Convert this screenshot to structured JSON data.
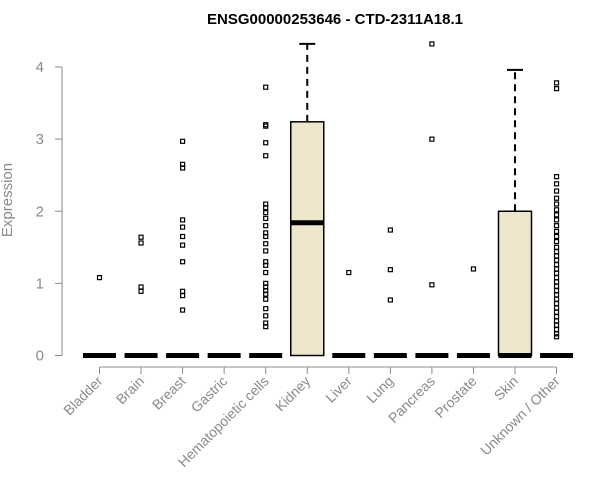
{
  "chart_data": {
    "type": "box",
    "title": "ENSG00000253646 - CTD-2311A18.1",
    "xlabel": "",
    "ylabel": "Expression",
    "ylim": [
      0,
      4.3
    ],
    "yticks": [
      0,
      1,
      2,
      3,
      4
    ],
    "box_fill": "#ede6cc",
    "grid": false,
    "categories": [
      "Bladder",
      "Brain",
      "Breast",
      "Gastric",
      "Hematopoietic cells",
      "Kidney",
      "Liver",
      "Lung",
      "Pancreas",
      "Prostate",
      "Skin",
      "Unknown / Other"
    ],
    "boxes": [
      {
        "q1": 0,
        "median": 0,
        "q3": 0,
        "whisker_low": 0,
        "whisker_high": 0,
        "outliers": [
          1.08
        ]
      },
      {
        "q1": 0,
        "median": 0,
        "q3": 0,
        "whisker_low": 0,
        "whisker_high": 0,
        "outliers": [
          1.64,
          1.56,
          0.95,
          0.89
        ]
      },
      {
        "q1": 0,
        "median": 0,
        "q3": 0,
        "whisker_low": 0,
        "whisker_high": 0,
        "outliers": [
          2.97,
          2.65,
          2.6,
          1.88,
          1.78,
          1.65,
          1.53,
          1.3,
          0.89,
          0.83,
          0.63
        ]
      },
      {
        "q1": 0,
        "median": 0,
        "q3": 0,
        "whisker_low": 0,
        "whisker_high": 0,
        "outliers": []
      },
      {
        "q1": 0,
        "median": 0,
        "q3": 0,
        "whisker_low": 0,
        "whisker_high": 0,
        "outliers": [
          3.72,
          3.2,
          3.18,
          2.95,
          2.77,
          2.1,
          2.05,
          1.98,
          1.9,
          1.8,
          1.7,
          1.65,
          1.55,
          1.45,
          1.3,
          1.25,
          1.15,
          1.0,
          0.95,
          0.9,
          0.85,
          0.78,
          0.65,
          0.55,
          0.45,
          0.4
        ]
      },
      {
        "q1": 0,
        "median": 1.84,
        "q3": 3.24,
        "whisker_low": 0,
        "whisker_high": 4.32,
        "outliers": []
      },
      {
        "q1": 0,
        "median": 0,
        "q3": 0,
        "whisker_low": 0,
        "whisker_high": 0,
        "outliers": [
          1.15
        ]
      },
      {
        "q1": 0,
        "median": 0,
        "q3": 0,
        "whisker_low": 0,
        "whisker_high": 0,
        "outliers": [
          1.74,
          1.19,
          0.77
        ]
      },
      {
        "q1": 0,
        "median": 0,
        "q3": 0,
        "whisker_low": 0,
        "whisker_high": 0,
        "outliers": [
          4.32,
          3.0,
          0.98
        ]
      },
      {
        "q1": 0,
        "median": 0,
        "q3": 0,
        "whisker_low": 0,
        "whisker_high": 0,
        "outliers": [
          1.2
        ]
      },
      {
        "q1": 0,
        "median": 0,
        "q3": 2.0,
        "whisker_low": 0,
        "whisker_high": 3.96,
        "outliers": []
      },
      {
        "q1": 0,
        "median": 0,
        "q3": 0,
        "whisker_low": 0,
        "whisker_high": 0,
        "outliers": [
          3.78,
          3.7,
          2.48,
          2.38,
          2.28,
          2.18,
          2.1,
          2.02,
          1.95,
          1.88,
          1.8,
          1.72,
          1.65,
          1.58,
          1.5,
          1.44,
          1.38,
          1.32,
          1.26,
          1.2,
          1.14,
          1.08,
          1.02,
          0.96,
          0.9,
          0.84,
          0.78,
          0.72,
          0.66,
          0.6,
          0.54,
          0.48,
          0.42,
          0.36,
          0.3,
          0.26
        ]
      }
    ]
  }
}
